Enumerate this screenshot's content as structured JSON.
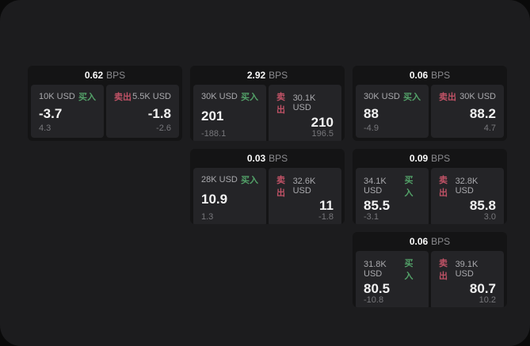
{
  "theme": {
    "outer_bg": "#0a0a0a",
    "container_bg": "#1c1c1e",
    "card_bg": "#141415",
    "panel_bg": "#242427",
    "buy_color": "#53a269",
    "sell_color": "#c05266"
  },
  "labels": {
    "unit": "BPS",
    "buy": "买入",
    "sell": "卖出"
  },
  "cards": [
    {
      "bps": "0.62",
      "buy": {
        "amount": "10K USD",
        "value": "-3.7",
        "sub": "4.3"
      },
      "sell": {
        "amount": "5.5K USD",
        "value": "-1.8",
        "sub": "-2.6"
      }
    },
    {
      "bps": "2.92",
      "buy": {
        "amount": "30K USD",
        "value": "201",
        "sub": "-188.1"
      },
      "sell": {
        "amount": "30.1K USD",
        "value": "210",
        "sub": "196.5"
      }
    },
    {
      "bps": "0.06",
      "buy": {
        "amount": "30K USD",
        "value": "88",
        "sub": "-4.9"
      },
      "sell": {
        "amount": "30K USD",
        "value": "88.2",
        "sub": "4.7"
      }
    },
    {
      "bps": "0.03",
      "buy": {
        "amount": "28K USD",
        "value": "10.9",
        "sub": "1.3"
      },
      "sell": {
        "amount": "32.6K USD",
        "value": "11",
        "sub": "-1.8"
      }
    },
    {
      "bps": "0.09",
      "buy": {
        "amount": "34.1K USD",
        "value": "85.5",
        "sub": "-3.1"
      },
      "sell": {
        "amount": "32.8K USD",
        "value": "85.8",
        "sub": "3.0"
      }
    },
    {
      "bps": "0.06",
      "buy": {
        "amount": "31.8K USD",
        "value": "80.5",
        "sub": "-10.8"
      },
      "sell": {
        "amount": "39.1K USD",
        "value": "80.7",
        "sub": "10.2"
      }
    }
  ]
}
